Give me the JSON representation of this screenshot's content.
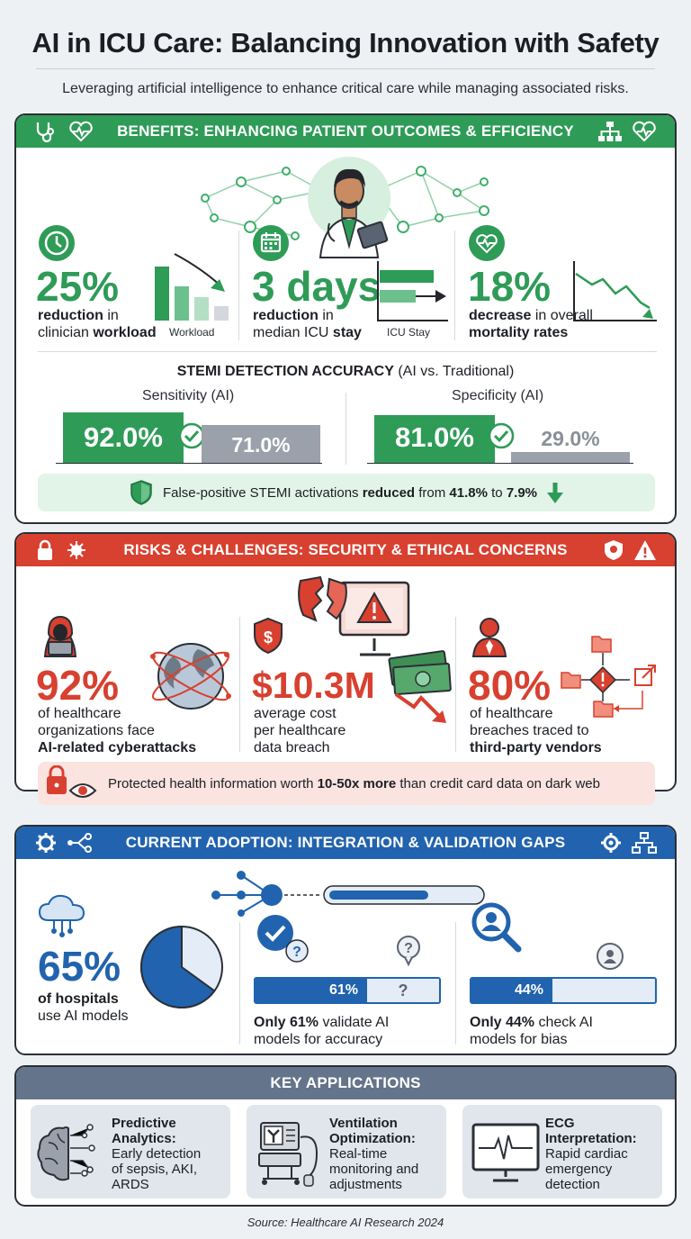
{
  "title": "AI in ICU Care: Balancing Innovation with Safety",
  "subtitle": "Leveraging artificial intelligence to enhance critical care while managing associated risks.",
  "benefits": {
    "banner": "BENEFITS: ENHANCING PATIENT OUTCOMES & EFFICIENCY",
    "stats": [
      {
        "value": "25%",
        "desc_bold1": "reduction",
        "desc_mid": " in clinician ",
        "desc_bold2": "workload",
        "chart_label": "Workload"
      },
      {
        "value": "3 days",
        "desc_bold1": "reduction",
        "desc_mid": " in median ICU ",
        "desc_bold2": "stay",
        "chart_label": "ICU Stay"
      },
      {
        "value": "18%",
        "desc_bold1": "decrease",
        "desc_mid": " in overall ",
        "desc_bold2": "mortality rates",
        "chart_label": ""
      }
    ],
    "stemi": {
      "title_bold": "STEMI DETECTION ACCURACY",
      "title_rest": " (AI vs. Traditional)",
      "sensitivity": {
        "label": "Sensitivity (AI)",
        "ai": "92.0%",
        "traditional": "71.0%",
        "ai_value": 92.0,
        "traditional_value": 71.0
      },
      "specificity": {
        "label": "Specificity (AI)",
        "ai": "81.0%",
        "traditional": "29.0%",
        "ai_value": 81.0,
        "traditional_value": 29.0
      }
    },
    "callout": {
      "pre": "False-positive STEMI activations ",
      "bold1": "reduced",
      "mid": " from ",
      "bold2": "41.8%",
      "mid2": " to ",
      "bold3": "7.9%"
    }
  },
  "risks": {
    "banner": "RISKS & CHALLENGES: SECURITY & ETHICAL CONCERNS",
    "stats": [
      {
        "value": "92%",
        "desc1": "of healthcare",
        "desc2": "organizations face",
        "desc_bold": "AI-related cyberattacks"
      },
      {
        "value": "$10.3M",
        "desc1": "average cost",
        "desc2": "per healthcare",
        "desc3": "data breach"
      },
      {
        "value": "80%",
        "desc1": "of healthcare",
        "desc2": "breaches traced to",
        "desc_bold": "third-party vendors"
      }
    ],
    "callout": {
      "pre": "Protected health information worth ",
      "bold": "10-50x more",
      "post": " than credit card data on dark web"
    }
  },
  "adoption": {
    "banner": "CURRENT ADOPTION: INTEGRATION & VALIDATION GAPS",
    "hospitals": {
      "value": "65%",
      "desc_bold1": "of hospitals",
      "desc2": "use AI models",
      "pie_fraction": 0.65
    },
    "validate": {
      "bar_label": "61%",
      "bar_value": 0.61,
      "rest_label": "?",
      "desc_bold": "Only 61%",
      "desc_rest": " validate AI",
      "desc2": "models for accuracy"
    },
    "bias": {
      "bar_label": "44%",
      "bar_value": 0.44,
      "desc_bold": "Only 44%",
      "desc_rest": " check AI",
      "desc2": "models for bias"
    }
  },
  "applications": {
    "banner": "KEY APPLICATIONS",
    "items": [
      {
        "title1": "Predictive",
        "title2": "Analytics:",
        "desc": [
          "Early detection",
          "of sepsis, AKI,",
          "ARDS"
        ],
        "icon": "brain-icon"
      },
      {
        "title1": "Ventilation",
        "title2": "Optimization:",
        "desc": [
          "Real-time",
          "monitoring and",
          "adjustments"
        ],
        "icon": "ventilator-icon"
      },
      {
        "title1": "ECG",
        "title2": "Interpretation:",
        "desc": [
          "Rapid cardiac",
          "emergency",
          "detection"
        ],
        "icon": "ecg-monitor-icon"
      }
    ]
  },
  "source": "Source: Healthcare AI Research 2024",
  "colors": {
    "green": "#2e9b57",
    "red": "#d8402f",
    "blue": "#2163ae",
    "gray": "#64748b"
  }
}
